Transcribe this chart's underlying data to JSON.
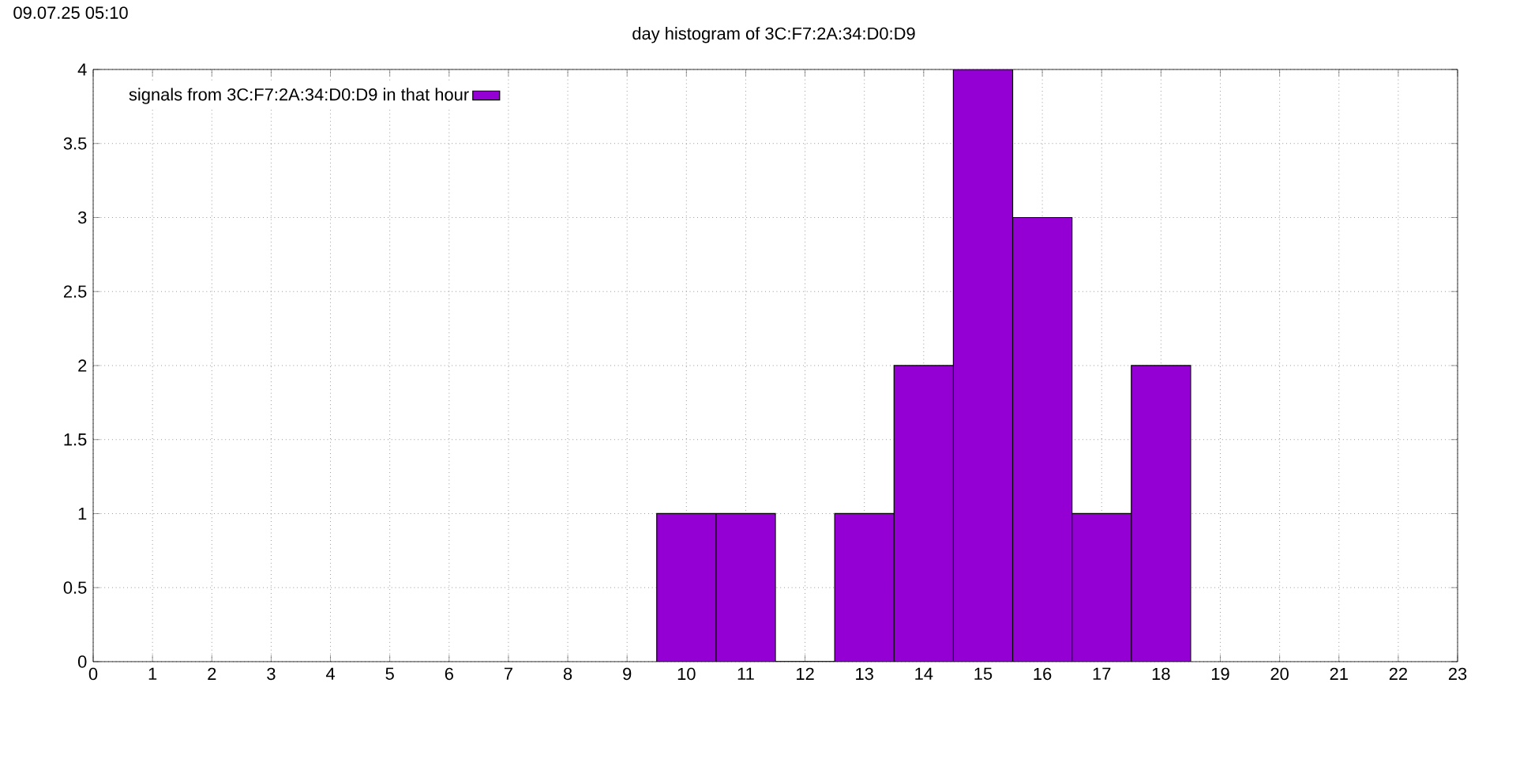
{
  "chart_data": {
    "type": "histogram",
    "title": "day histogram of 3C:F7:2A:34:D0:D9",
    "annotations": [
      "09.07.25 05:10"
    ],
    "bins": [
      9.5,
      10.5,
      11.5,
      12.5,
      13.5,
      14.5,
      15.5,
      16.5,
      17.5,
      18.5
    ],
    "series": [
      {
        "name": "signals from 3C:F7:2A:34:D0:D9 in that hour",
        "color": "#9400d3",
        "values": [
          1,
          1,
          0,
          1,
          2,
          4,
          3,
          1,
          2
        ]
      }
    ],
    "xlim": [
      0,
      23
    ],
    "xticks": [
      0,
      1,
      2,
      3,
      4,
      5,
      6,
      7,
      8,
      9,
      10,
      11,
      12,
      13,
      14,
      15,
      16,
      17,
      18,
      19,
      20,
      21,
      22,
      23
    ],
    "ylim": [
      0,
      4
    ],
    "yticks": [
      0,
      0.5,
      1,
      1.5,
      2,
      2.5,
      3,
      3.5,
      4
    ],
    "grid": true,
    "legend": "top left"
  }
}
